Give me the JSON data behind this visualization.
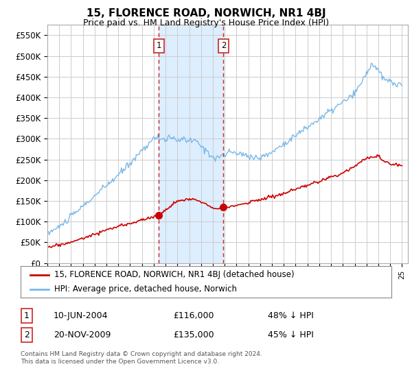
{
  "title": "15, FLORENCE ROAD, NORWICH, NR1 4BJ",
  "subtitle": "Price paid vs. HM Land Registry's House Price Index (HPI)",
  "ylim": [
    0,
    575000
  ],
  "yticks": [
    0,
    50000,
    100000,
    150000,
    200000,
    250000,
    300000,
    350000,
    400000,
    450000,
    500000,
    550000
  ],
  "ytick_labels": [
    "£0",
    "£50K",
    "£100K",
    "£150K",
    "£200K",
    "£250K",
    "£300K",
    "£350K",
    "£400K",
    "£450K",
    "£500K",
    "£550K"
  ],
  "sale1_date": 2004.44,
  "sale1_price": 116000,
  "sale1_label": "1",
  "sale2_date": 2009.9,
  "sale2_price": 135000,
  "sale2_label": "2",
  "hpi_color": "#7ab8e8",
  "price_color": "#cc0000",
  "legend_label_price": "15, FLORENCE ROAD, NORWICH, NR1 4BJ (detached house)",
  "legend_label_hpi": "HPI: Average price, detached house, Norwich",
  "table_row1": [
    "1",
    "10-JUN-2004",
    "£116,000",
    "48% ↓ HPI"
  ],
  "table_row2": [
    "2",
    "20-NOV-2009",
    "£135,000",
    "45% ↓ HPI"
  ],
  "footer": "Contains HM Land Registry data © Crown copyright and database right 2024.\nThis data is licensed under the Open Government Licence v3.0.",
  "background_color": "#ffffff",
  "grid_color": "#cccccc",
  "shaded_region_color": "#ddeeff"
}
